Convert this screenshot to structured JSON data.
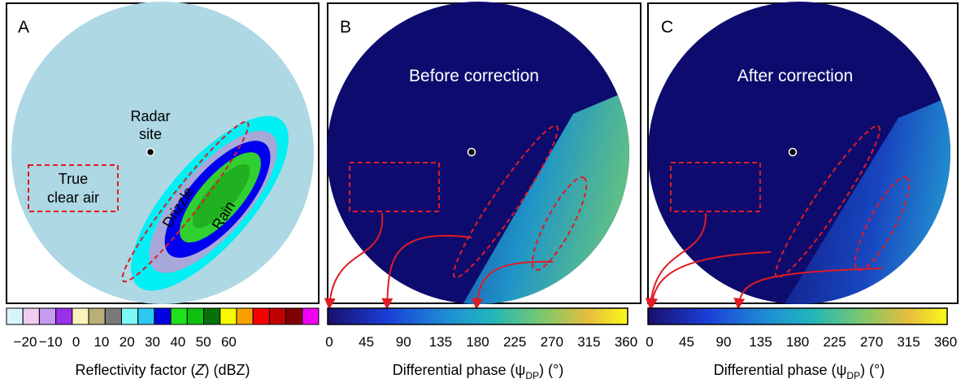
{
  "panels": [
    {
      "label": "A",
      "radar_site": [
        "Radar",
        "site"
      ],
      "clear_air": [
        "True",
        "clear air"
      ],
      "drizzle": "Drizzle",
      "rain": "Rain",
      "colorbar": {
        "ticks": [
          "−20",
          "−10",
          "0",
          "10",
          "20",
          "30",
          "40",
          "50",
          "60"
        ],
        "axis_label": {
          "pre": "Reflectivity factor (",
          "var": "Z",
          "post": ") (dBZ)"
        }
      }
    },
    {
      "label": "B",
      "title": "Before correction",
      "colorbar": {
        "ticks": [
          0,
          45,
          90,
          135,
          180,
          225,
          270,
          315,
          360
        ],
        "axis_label": {
          "pre": "Differential phase (",
          "var": "ψ",
          "sub": "DP",
          "post": ") (°)"
        }
      }
    },
    {
      "label": "C",
      "title": "After correction",
      "colorbar": {
        "ticks": [
          0,
          45,
          90,
          135,
          180,
          225,
          270,
          315,
          360
        ],
        "axis_label": {
          "pre": "Differential phase (",
          "var": "ψ",
          "sub": "DP",
          "post": ") (°)"
        }
      }
    }
  ]
}
